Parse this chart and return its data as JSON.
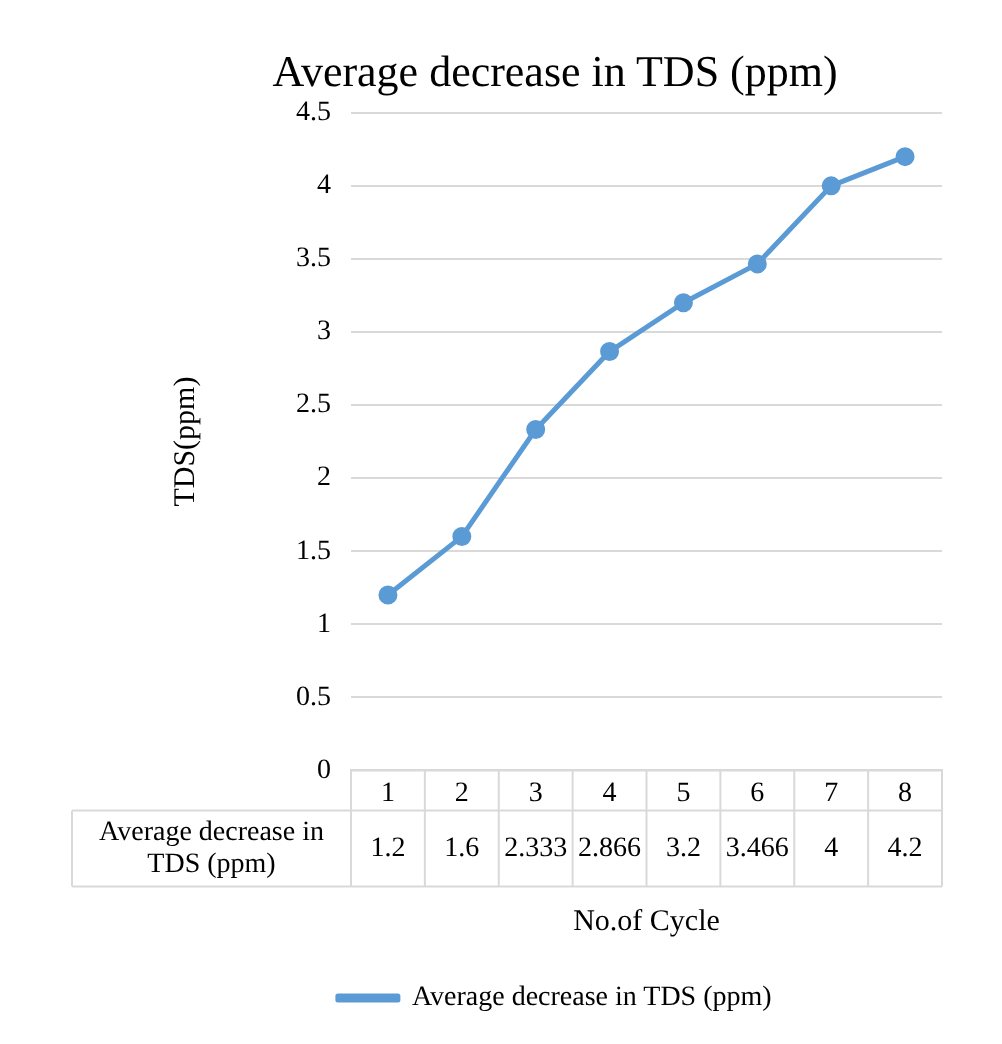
{
  "chart_data": {
    "type": "line",
    "title": "Average decrease in TDS (ppm)",
    "xlabel": "No.of Cycle",
    "ylabel": "TDS(ppm)",
    "categories": [
      "1",
      "2",
      "3",
      "4",
      "5",
      "6",
      "7",
      "8"
    ],
    "series": [
      {
        "name": "Average decrease in TDS (ppm)",
        "color": "#5b9bd5",
        "values": [
          1.2,
          1.6,
          2.333,
          2.866,
          3.2,
          3.466,
          4,
          4.2
        ]
      }
    ],
    "ylim": [
      0,
      4.5
    ],
    "yticks": [
      0,
      0.5,
      1,
      1.5,
      2,
      2.5,
      3,
      3.5,
      4,
      4.5
    ],
    "grid": "y",
    "legend": "bottom",
    "marker": "circle",
    "line_style": "solid",
    "data_labels": true
  }
}
